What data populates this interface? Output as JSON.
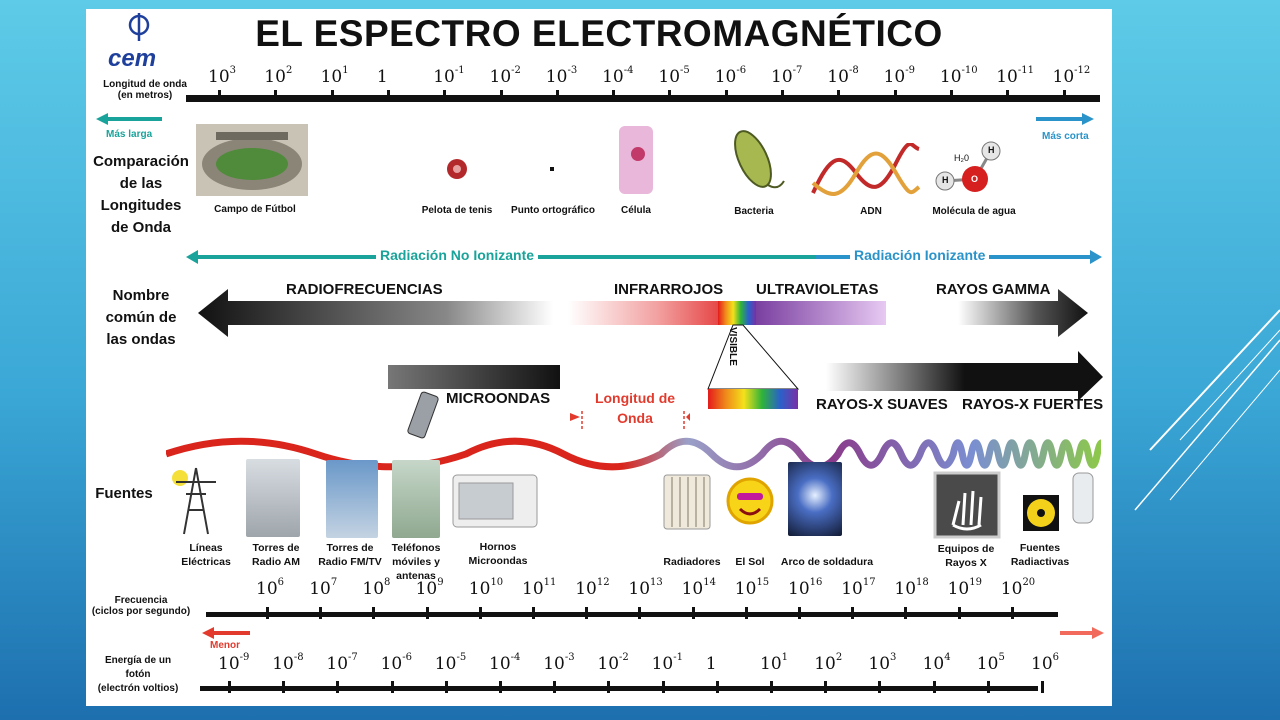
{
  "title": "EL ESPECTRO ELECTROMAGNÉTICO",
  "logo_text": "cem",
  "wavelength": {
    "label_line1": "Longitud de onda",
    "label_line2": "(en metros)",
    "longer": "Más larga",
    "shorter": "Más corta",
    "ticks": [
      {
        "base": "10",
        "exp": "3"
      },
      {
        "base": "10",
        "exp": "2"
      },
      {
        "base": "10",
        "exp": "1"
      },
      {
        "base": "1",
        "exp": ""
      },
      {
        "base": "10",
        "exp": "-1"
      },
      {
        "base": "10",
        "exp": "-2"
      },
      {
        "base": "10",
        "exp": "-3"
      },
      {
        "base": "10",
        "exp": "-4"
      },
      {
        "base": "10",
        "exp": "-5"
      },
      {
        "base": "10",
        "exp": "-6"
      },
      {
        "base": "10",
        "exp": "-7"
      },
      {
        "base": "10",
        "exp": "-8"
      },
      {
        "base": "10",
        "exp": "-9"
      },
      {
        "base": "10",
        "exp": "-10"
      },
      {
        "base": "10",
        "exp": "-11"
      },
      {
        "base": "10",
        "exp": "-12"
      }
    ]
  },
  "comparison": {
    "label": [
      "Comparación",
      "de las",
      "Longitudes",
      "de Onda"
    ],
    "items": [
      "Campo de Fútbol",
      "Pelota de tenis",
      "Punto ortográfico",
      "Célula",
      "Bacteria",
      "ADN",
      "Molécula de agua"
    ],
    "h2o": "H₂0",
    "h": "H",
    "o": "O"
  },
  "ionizing": {
    "non_ionizing": "Radiación No Ionizante",
    "ionizing": "Radiación Ionizante"
  },
  "common_name": {
    "label": [
      "Nombre",
      "común de",
      "las ondas"
    ],
    "radio": "RADIOFRECUENCIAS",
    "infrared": "INFRARROJOS",
    "ultraviolet": "ULTRAVIOLETAS",
    "gamma": "RAYOS GAMMA",
    "visible": "VISIBLE",
    "microwaves": "MICROONDAS",
    "wavelength_note": [
      "Longitud de",
      "Onda"
    ],
    "soft_xray": "RAYOS-X SUAVES",
    "hard_xray": "RAYOS-X FUERTES"
  },
  "sources": {
    "label": "Fuentes",
    "items": [
      [
        "Líneas",
        "Eléctricas"
      ],
      [
        "Torres de",
        "Radio AM"
      ],
      [
        "Torres de",
        "Radio FM/TV"
      ],
      [
        "Teléfonos",
        "móviles y",
        "antenas"
      ],
      [
        "Hornos",
        "Microondas"
      ],
      [
        "Radiadores"
      ],
      [
        "El Sol"
      ],
      [
        "Arco de soldadura"
      ],
      [
        "Equipos de",
        "Rayos X"
      ],
      [
        "Fuentes",
        "Radiactivas"
      ]
    ]
  },
  "frequency": {
    "label_line1": "Frecuencia",
    "label_line2": "(ciclos por segundo)",
    "lower": "Menor",
    "ticks": [
      {
        "base": "10",
        "exp": "6"
      },
      {
        "base": "10",
        "exp": "7"
      },
      {
        "base": "10",
        "exp": "8"
      },
      {
        "base": "10",
        "exp": "9"
      },
      {
        "base": "10",
        "exp": "10"
      },
      {
        "base": "10",
        "exp": "11"
      },
      {
        "base": "10",
        "exp": "12"
      },
      {
        "base": "10",
        "exp": "13"
      },
      {
        "base": "10",
        "exp": "14"
      },
      {
        "base": "10",
        "exp": "15"
      },
      {
        "base": "10",
        "exp": "16"
      },
      {
        "base": "10",
        "exp": "17"
      },
      {
        "base": "10",
        "exp": "18"
      },
      {
        "base": "10",
        "exp": "19"
      },
      {
        "base": "10",
        "exp": "20"
      }
    ]
  },
  "energy": {
    "label": [
      "Energía de un",
      "fotón",
      "(electrón voltios)"
    ],
    "ticks": [
      {
        "base": "10",
        "exp": "-9"
      },
      {
        "base": "10",
        "exp": "-8"
      },
      {
        "base": "10",
        "exp": "-7"
      },
      {
        "base": "10",
        "exp": "-6"
      },
      {
        "base": "10",
        "exp": "-5"
      },
      {
        "base": "10",
        "exp": "-4"
      },
      {
        "base": "10",
        "exp": "-3"
      },
      {
        "base": "10",
        "exp": "-2"
      },
      {
        "base": "10",
        "exp": "-1"
      },
      {
        "base": "1",
        "exp": ""
      },
      {
        "base": "10",
        "exp": "1"
      },
      {
        "base": "10",
        "exp": "2"
      },
      {
        "base": "10",
        "exp": "3"
      },
      {
        "base": "10",
        "exp": "4"
      },
      {
        "base": "10",
        "exp": "5"
      },
      {
        "base": "10",
        "exp": "6"
      }
    ]
  },
  "colors": {
    "teal": "#1aa39a",
    "blue": "#2a93c9",
    "red": "#e23b2e",
    "wave_red": "#d9251c",
    "wave_purple": "#8a3a8a"
  }
}
